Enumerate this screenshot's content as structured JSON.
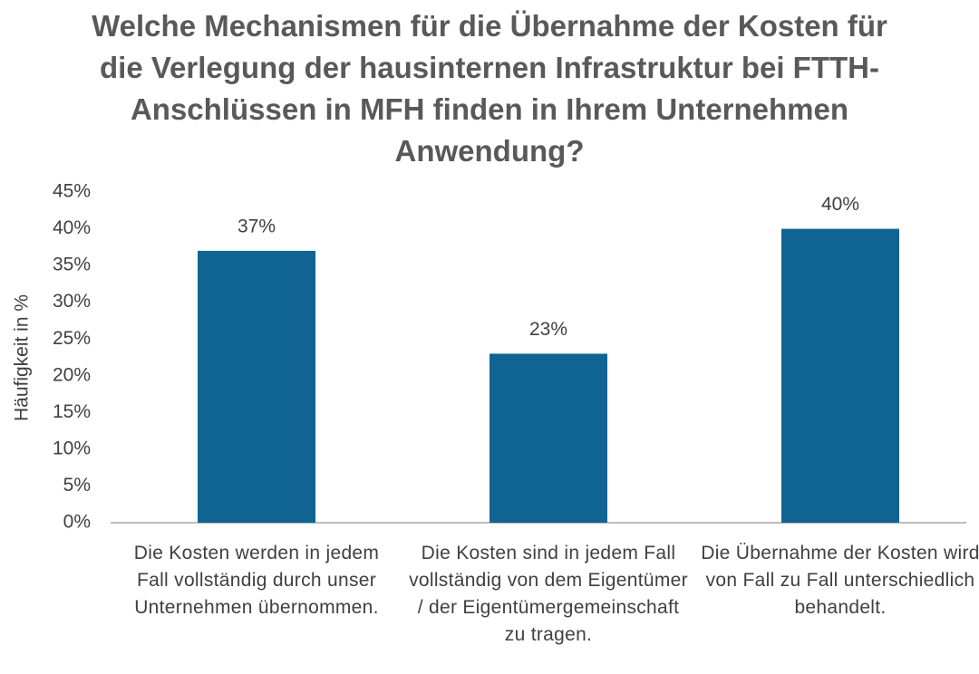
{
  "chart_data": {
    "type": "bar",
    "title": "Welche Mechanismen für die Übernahme der Kosten für die Verlegung der hausinternen Infrastruktur bei FTTH-Anschlüssen in MFH finden in Ihrem Unternehmen Anwendung?",
    "y_label": "Häufigkeit in %",
    "categories": [
      "Die Kosten werden in jedem Fall vollständig durch unser Unternehmen übernommen.",
      "Die Kosten sind in jedem Fall vollständig von dem Eigentümer / der Eigentümergemeinschaft zu tragen.",
      "Die Übernahme der Kosten wird von Fall zu Fall unterschiedlich behandelt."
    ],
    "values": [
      37,
      23,
      40
    ],
    "value_labels": [
      "37%",
      "23%",
      "40%"
    ],
    "color": "#0f6491",
    "ylim": [
      0,
      45
    ],
    "yticks": [
      {
        "value": 0,
        "label": "0%"
      },
      {
        "value": 5,
        "label": "5%"
      },
      {
        "value": 10,
        "label": "10%"
      },
      {
        "value": 15,
        "label": "15%"
      },
      {
        "value": 20,
        "label": "20%"
      },
      {
        "value": 25,
        "label": "25%"
      },
      {
        "value": 30,
        "label": "30%"
      },
      {
        "value": 35,
        "label": "35%"
      },
      {
        "value": 40,
        "label": "40%"
      },
      {
        "value": 45,
        "label": "45%"
      }
    ],
    "grid": false
  }
}
